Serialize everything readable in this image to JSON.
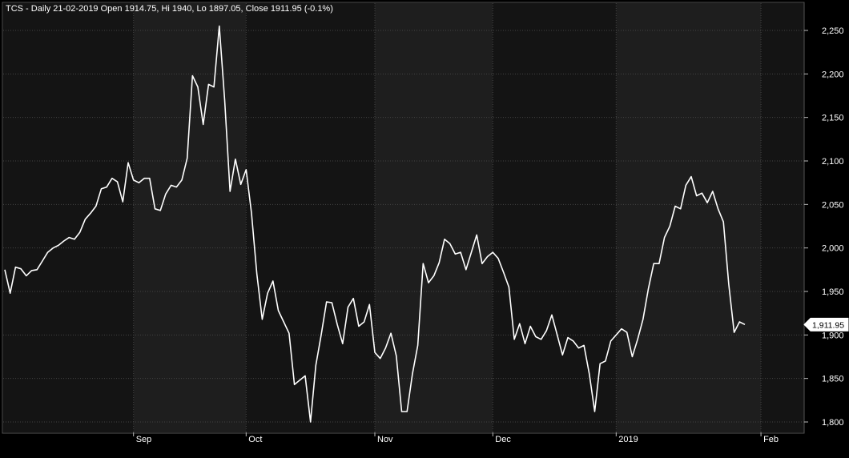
{
  "header": {
    "text": "TCS - Daily 21-02-2019 Open 1914.75, Hi 1940, Lo 1897.05, Close 1911.95 (-0.1%)"
  },
  "colors": {
    "background": "#000000",
    "plot_band_dark": "#141414",
    "plot_band_light": "#1e1e1e",
    "grid": "#444444",
    "line": "#ffffff",
    "text": "#ffffff"
  },
  "chart_data": {
    "type": "line",
    "title": "",
    "xlabel": "",
    "ylabel": "",
    "ylim": [
      1790,
      2265
    ],
    "yticks": [
      1800,
      1850,
      1900,
      1950,
      2000,
      2050,
      2100,
      2150,
      2200,
      2250
    ],
    "ytick_labels": [
      "1,800",
      "1,850",
      "1,900",
      "1,950",
      "2,000",
      "2,050",
      "2,100",
      "2,150",
      "2,200",
      "2,250"
    ],
    "grid": true,
    "x_month_labels": [
      {
        "label": "Sep",
        "index": 24
      },
      {
        "label": "Oct",
        "index": 45
      },
      {
        "label": "Nov",
        "index": 69
      },
      {
        "label": "Dec",
        "index": 91
      },
      {
        "label": "2019",
        "index": 114
      },
      {
        "label": "Feb",
        "index": 141
      }
    ],
    "last_value_label": "1,911.95",
    "last_value": 1911.95,
    "values": [
      1975,
      1948,
      1978,
      1976,
      1968,
      1974,
      1975,
      1985,
      1995,
      2000,
      2003,
      2008,
      2012,
      2010,
      2018,
      2033,
      2040,
      2048,
      2068,
      2070,
      2080,
      2076,
      2053,
      2098,
      2078,
      2075,
      2080,
      2080,
      2045,
      2043,
      2062,
      2072,
      2070,
      2078,
      2103,
      2198,
      2185,
      2142,
      2188,
      2185,
      2255,
      2170,
      2065,
      2102,
      2073,
      2090,
      2040,
      1970,
      1918,
      1948,
      1962,
      1928,
      1915,
      1902,
      1843,
      1848,
      1853,
      1800,
      1865,
      1900,
      1938,
      1937,
      1912,
      1890,
      1932,
      1942,
      1910,
      1915,
      1935,
      1880,
      1873,
      1885,
      1902,
      1876,
      1812,
      1812,
      1855,
      1888,
      1982,
      1960,
      1968,
      1983,
      2010,
      2005,
      1993,
      1995,
      1975,
      1995,
      2015,
      1982,
      1990,
      1995,
      1988,
      1972,
      1955,
      1895,
      1913,
      1890,
      1910,
      1898,
      1895,
      1905,
      1923,
      1900,
      1877,
      1897,
      1893,
      1885,
      1888,
      1855,
      1812,
      1867,
      1870,
      1893,
      1900,
      1907,
      1903,
      1875,
      1895,
      1918,
      1953,
      1982,
      1982,
      2012,
      2025,
      2048,
      2045,
      2072,
      2082,
      2060,
      2063,
      2052,
      2065,
      2045,
      2030,
      1958,
      1903,
      1915,
      1912
    ]
  }
}
